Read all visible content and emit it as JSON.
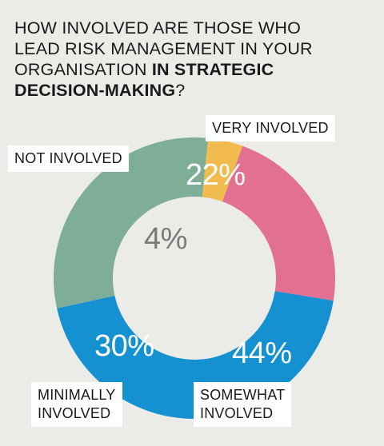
{
  "title": {
    "line1": "HOW INVOLVED ARE THOSE WHO",
    "line2": "LEAD RISK MANAGEMENT IN YOUR",
    "line3_regular": "ORGANISATION ",
    "line3_bold": "IN STRATEGIC",
    "line4_bold": "DECISION-MAKING",
    "line4_regular": "?"
  },
  "chart_data": {
    "type": "pie",
    "variant": "donut",
    "slices": [
      {
        "key": "very",
        "label": "VERY INVOLVED",
        "value": 22,
        "pct_label": "22%",
        "color": "#e27092",
        "text_color": "#ffffff"
      },
      {
        "key": "somewhat",
        "label_line1": "SOMEWHAT",
        "label_line2": "INVOLVED",
        "value": 44,
        "pct_label": "44%",
        "color": "#1591d2",
        "text_color": "#ffffff"
      },
      {
        "key": "minimally",
        "label_line1": "MINIMALLY",
        "label_line2": "INVOLVED",
        "value": 30,
        "pct_label": "30%",
        "color": "#7fae98",
        "text_color": "#ffffff"
      },
      {
        "key": "not",
        "label": "NOT INVOLVED",
        "value": 4,
        "pct_label": "4%",
        "color": "#f1bb4e",
        "text_color": "#7a7a7a"
      }
    ]
  }
}
